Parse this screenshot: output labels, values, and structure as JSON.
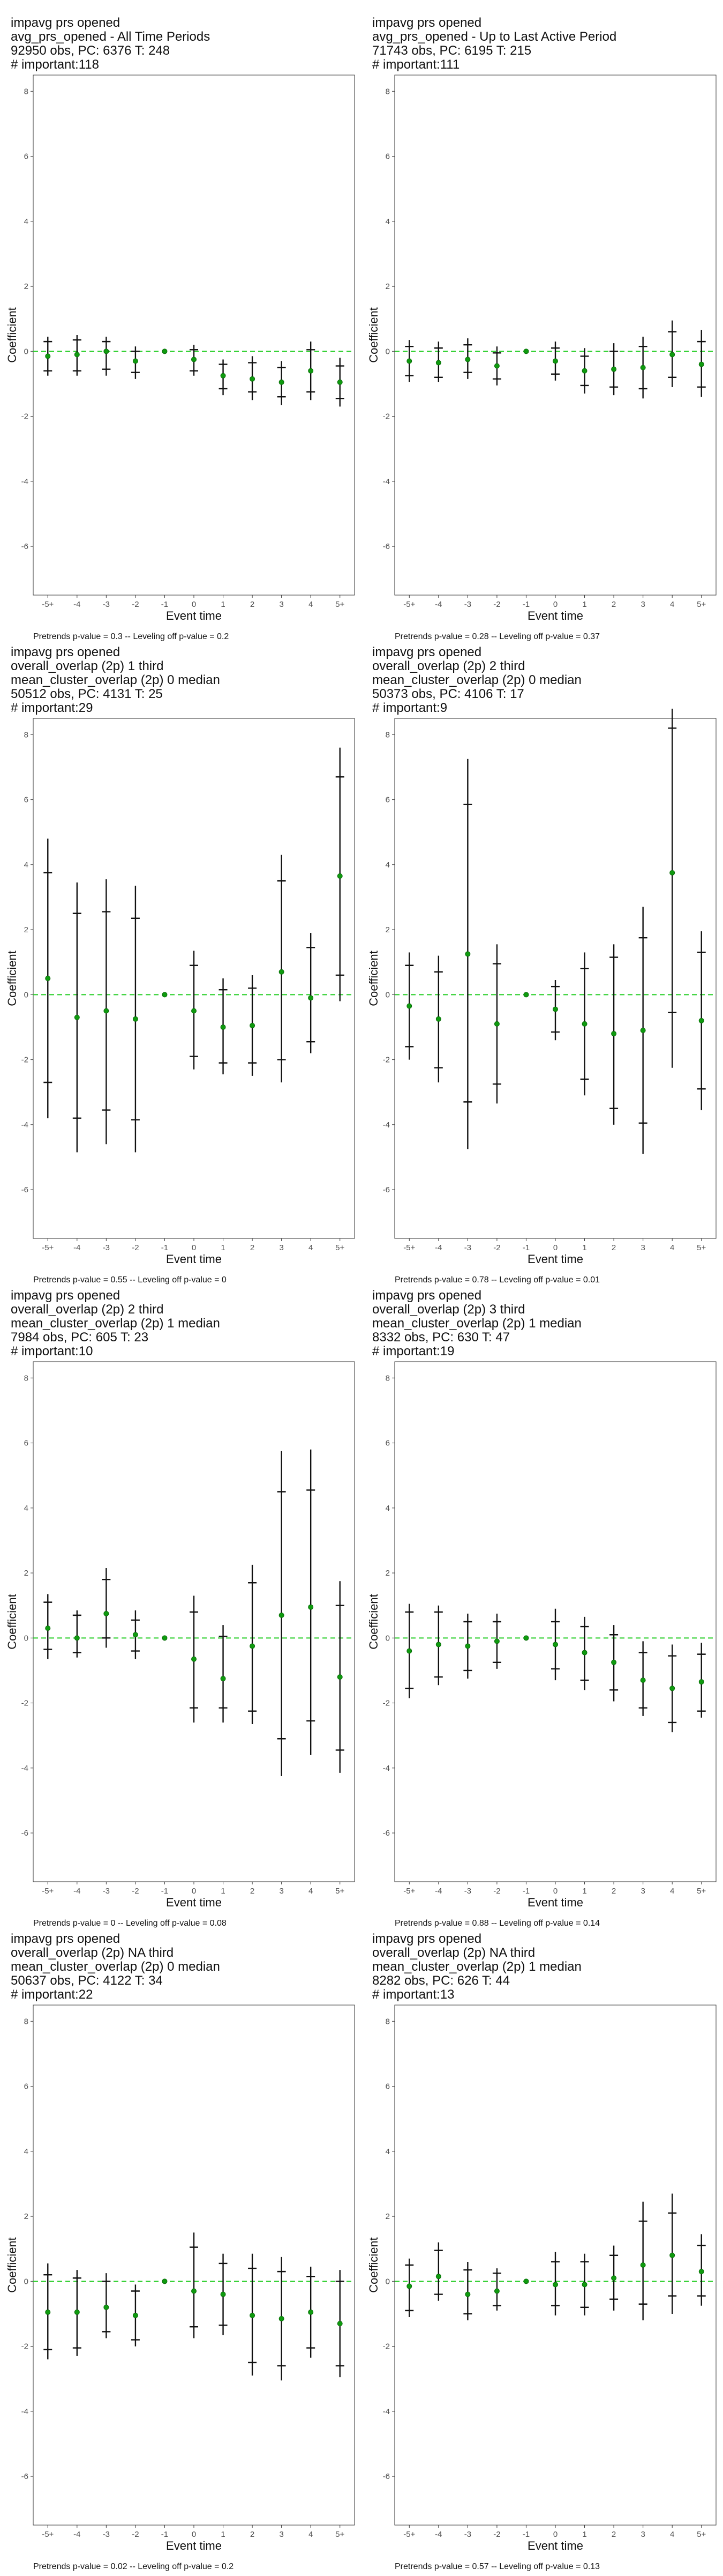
{
  "chart_data": [
    {
      "type": "scatter",
      "title_lines": [
        "impavg prs opened",
        "avg_prs_opened - All Time Periods",
        "92950 obs, PC: 6376 T: 248",
        "# important:118"
      ],
      "xlabel": "Event time",
      "ylabel": "Coefficient",
      "categories": [
        "-5+",
        "-4",
        "-3",
        "-2",
        "-1",
        "0",
        "1",
        "2",
        "3",
        "4",
        "5+"
      ],
      "ylim": [
        -7.5,
        8.5
      ],
      "yticks": [
        -6,
        -4,
        -2,
        0,
        2,
        4,
        6,
        8
      ],
      "estimate": [
        -0.15,
        -0.1,
        0.0,
        -0.3,
        0.0,
        -0.25,
        -0.75,
        -0.85,
        -0.95,
        -0.6,
        -0.95
      ],
      "ci_outer": [
        [
          -0.75,
          0.45
        ],
        [
          -0.75,
          0.5
        ],
        [
          -0.75,
          0.45
        ],
        [
          -0.85,
          0.15
        ],
        [
          0,
          0
        ],
        [
          -0.75,
          0.2
        ],
        [
          -1.35,
          -0.25
        ],
        [
          -1.5,
          -0.15
        ],
        [
          -1.65,
          -0.3
        ],
        [
          -1.5,
          0.3
        ],
        [
          -1.7,
          -0.2
        ]
      ],
      "ci_inner": [
        [
          -0.6,
          0.3
        ],
        [
          -0.6,
          0.35
        ],
        [
          -0.55,
          0.3
        ],
        [
          -0.65,
          0.0
        ],
        [
          0,
          0
        ],
        [
          -0.6,
          0.05
        ],
        [
          -1.15,
          -0.4
        ],
        [
          -1.25,
          -0.35
        ],
        [
          -1.4,
          -0.5
        ],
        [
          -1.25,
          0.05
        ],
        [
          -1.45,
          -0.45
        ]
      ],
      "footer": "Pretrends p-value = 0.3 -- Leveling off p-value = 0.2"
    },
    {
      "type": "scatter",
      "title_lines": [
        "impavg prs opened",
        "avg_prs_opened - Up to Last Active Period",
        "71743 obs, PC: 6195 T: 215",
        "# important:111"
      ],
      "xlabel": "Event time",
      "ylabel": "Coefficient",
      "categories": [
        "-5+",
        "-4",
        "-3",
        "-2",
        "-1",
        "0",
        "1",
        "2",
        "3",
        "4",
        "5+"
      ],
      "ylim": [
        -7.5,
        8.5
      ],
      "yticks": [
        -6,
        -4,
        -2,
        0,
        2,
        4,
        6,
        8
      ],
      "estimate": [
        -0.3,
        -0.35,
        -0.25,
        -0.45,
        0.0,
        -0.3,
        -0.6,
        -0.55,
        -0.5,
        -0.1,
        -0.4
      ],
      "ci_outer": [
        [
          -0.95,
          0.35
        ],
        [
          -0.95,
          0.3
        ],
        [
          -0.85,
          0.4
        ],
        [
          -1.05,
          0.15
        ],
        [
          0,
          0
        ],
        [
          -0.9,
          0.3
        ],
        [
          -1.3,
          0.1
        ],
        [
          -1.35,
          0.25
        ],
        [
          -1.45,
          0.45
        ],
        [
          -1.1,
          0.95
        ],
        [
          -1.4,
          0.65
        ]
      ],
      "ci_inner": [
        [
          -0.75,
          0.15
        ],
        [
          -0.8,
          0.1
        ],
        [
          -0.65,
          0.2
        ],
        [
          -0.85,
          -0.05
        ],
        [
          0,
          0
        ],
        [
          -0.7,
          0.1
        ],
        [
          -1.05,
          -0.15
        ],
        [
          -1.1,
          0.0
        ],
        [
          -1.15,
          0.15
        ],
        [
          -0.8,
          0.6
        ],
        [
          -1.1,
          0.3
        ]
      ],
      "footer": "Pretrends p-value = 0.28 -- Leveling off p-value = 0.37"
    },
    {
      "type": "scatter",
      "title_lines": [
        "impavg prs opened",
        "overall_overlap (2p) 1 third",
        "mean_cluster_overlap (2p) 0 median",
        "50512 obs, PC: 4131 T: 25",
        "# important:29"
      ],
      "xlabel": "Event time",
      "ylabel": "Coefficient",
      "categories": [
        "-5+",
        "-4",
        "-3",
        "-2",
        "-1",
        "0",
        "1",
        "2",
        "3",
        "4",
        "5+"
      ],
      "ylim": [
        -7.5,
        8.5
      ],
      "yticks": [
        -6,
        -4,
        -2,
        0,
        2,
        4,
        6,
        8
      ],
      "estimate": [
        0.5,
        -0.7,
        -0.5,
        -0.75,
        0.0,
        -0.5,
        -1.0,
        -0.95,
        0.7,
        -0.1,
        3.65
      ],
      "ci_outer": [
        [
          -3.8,
          4.8
        ],
        [
          -4.85,
          3.45
        ],
        [
          -4.6,
          3.55
        ],
        [
          -4.85,
          3.35
        ],
        [
          0,
          0
        ],
        [
          -2.3,
          1.35
        ],
        [
          -2.45,
          0.5
        ],
        [
          -2.5,
          0.6
        ],
        [
          -2.7,
          4.3
        ],
        [
          -1.8,
          1.9
        ],
        [
          -0.2,
          7.6
        ]
      ],
      "ci_inner": [
        [
          -2.7,
          3.75
        ],
        [
          -3.8,
          2.5
        ],
        [
          -3.55,
          2.55
        ],
        [
          -3.85,
          2.35
        ],
        [
          0,
          0
        ],
        [
          -1.9,
          0.9
        ],
        [
          -2.1,
          0.15
        ],
        [
          -2.1,
          0.2
        ],
        [
          -2.0,
          3.5
        ],
        [
          -1.45,
          1.45
        ],
        [
          0.6,
          6.7
        ]
      ],
      "footer": "Pretrends p-value = 0.55 -- Leveling off p-value = 0"
    },
    {
      "type": "scatter",
      "title_lines": [
        "impavg prs opened",
        "overall_overlap (2p) 2 third",
        "mean_cluster_overlap (2p) 0 median",
        "50373 obs, PC: 4106 T: 17",
        "# important:9"
      ],
      "xlabel": "Event time",
      "ylabel": "Coefficient",
      "categories": [
        "-5+",
        "-4",
        "-3",
        "-2",
        "-1",
        "0",
        "1",
        "2",
        "3",
        "4",
        "5+"
      ],
      "ylim": [
        -7.5,
        8.5
      ],
      "yticks": [
        -6,
        -4,
        -2,
        0,
        2,
        4,
        6,
        8
      ],
      "estimate": [
        -0.35,
        -0.75,
        1.25,
        -0.9,
        0.0,
        -0.45,
        -0.9,
        -1.2,
        -1.1,
        3.75,
        -0.8
      ],
      "ci_outer": [
        [
          -2.0,
          1.3
        ],
        [
          -2.7,
          1.2
        ],
        [
          -4.75,
          7.25
        ],
        [
          -3.35,
          1.55
        ],
        [
          0,
          0
        ],
        [
          -1.4,
          0.45
        ],
        [
          -3.1,
          1.3
        ],
        [
          -4.0,
          1.55
        ],
        [
          -4.9,
          2.7
        ],
        [
          -2.25,
          8.8
        ],
        [
          -3.55,
          1.95
        ]
      ],
      "ci_inner": [
        [
          -1.6,
          0.9
        ],
        [
          -2.25,
          0.7
        ],
        [
          -3.3,
          5.85
        ],
        [
          -2.75,
          0.95
        ],
        [
          0,
          0
        ],
        [
          -1.15,
          0.25
        ],
        [
          -2.6,
          0.8
        ],
        [
          -3.5,
          1.15
        ],
        [
          -3.95,
          1.75
        ],
        [
          -0.55,
          8.2
        ],
        [
          -2.9,
          1.3
        ]
      ],
      "footer": "Pretrends p-value = 0.78 -- Leveling off p-value = 0.01"
    },
    {
      "type": "scatter",
      "title_lines": [
        "impavg prs opened",
        "overall_overlap (2p) 2 third",
        "mean_cluster_overlap (2p) 1 median",
        "7984 obs, PC: 605 T: 23",
        "# important:10"
      ],
      "xlabel": "Event time",
      "ylabel": "Coefficient",
      "categories": [
        "-5+",
        "-4",
        "-3",
        "-2",
        "-1",
        "0",
        "1",
        "2",
        "3",
        "4",
        "5+"
      ],
      "ylim": [
        -7.5,
        8.5
      ],
      "yticks": [
        -6,
        -4,
        -2,
        0,
        2,
        4,
        6,
        8
      ],
      "estimate": [
        0.3,
        0.0,
        0.75,
        0.1,
        0.0,
        -0.65,
        -1.25,
        -0.25,
        0.7,
        0.95,
        -1.2
      ],
      "ci_outer": [
        [
          -0.65,
          1.35
        ],
        [
          -0.6,
          0.85
        ],
        [
          -0.3,
          2.15
        ],
        [
          -0.65,
          0.85
        ],
        [
          0,
          0
        ],
        [
          -2.6,
          1.3
        ],
        [
          -2.6,
          0.4
        ],
        [
          -2.65,
          2.25
        ],
        [
          -4.25,
          5.75
        ],
        [
          -3.6,
          5.8
        ],
        [
          -4.15,
          1.75
        ]
      ],
      "ci_inner": [
        [
          -0.35,
          1.1
        ],
        [
          -0.45,
          0.7
        ],
        [
          0.0,
          1.8
        ],
        [
          -0.4,
          0.55
        ],
        [
          0,
          0
        ],
        [
          -2.15,
          0.8
        ],
        [
          -2.15,
          0.05
        ],
        [
          -2.25,
          1.7
        ],
        [
          -3.1,
          4.5
        ],
        [
          -2.55,
          4.55
        ],
        [
          -3.45,
          1.0
        ]
      ],
      "footer": "Pretrends p-value = 0 -- Leveling off p-value = 0.08"
    },
    {
      "type": "scatter",
      "title_lines": [
        "impavg prs opened",
        "overall_overlap (2p) 3 third",
        "mean_cluster_overlap (2p) 1 median",
        "8332 obs, PC: 630 T: 47",
        "# important:19"
      ],
      "xlabel": "Event time",
      "ylabel": "Coefficient",
      "categories": [
        "-5+",
        "-4",
        "-3",
        "-2",
        "-1",
        "0",
        "1",
        "2",
        "3",
        "4",
        "5+"
      ],
      "ylim": [
        -7.5,
        8.5
      ],
      "yticks": [
        -6,
        -4,
        -2,
        0,
        2,
        4,
        6,
        8
      ],
      "estimate": [
        -0.4,
        -0.2,
        -0.25,
        -0.1,
        0.0,
        -0.2,
        -0.45,
        -0.75,
        -1.3,
        -1.55,
        -1.35
      ],
      "ci_outer": [
        [
          -1.85,
          1.05
        ],
        [
          -1.45,
          1.0
        ],
        [
          -1.25,
          0.75
        ],
        [
          -0.95,
          0.75
        ],
        [
          0,
          0
        ],
        [
          -1.3,
          0.9
        ],
        [
          -1.6,
          0.65
        ],
        [
          -1.95,
          0.4
        ],
        [
          -2.4,
          -0.1
        ],
        [
          -2.9,
          -0.2
        ],
        [
          -2.45,
          -0.15
        ]
      ],
      "ci_inner": [
        [
          -1.55,
          0.8
        ],
        [
          -1.2,
          0.8
        ],
        [
          -1.0,
          0.5
        ],
        [
          -0.75,
          0.5
        ],
        [
          0,
          0
        ],
        [
          -0.95,
          0.5
        ],
        [
          -1.3,
          0.35
        ],
        [
          -1.6,
          0.1
        ],
        [
          -2.15,
          -0.45
        ],
        [
          -2.6,
          -0.55
        ],
        [
          -2.25,
          -0.5
        ]
      ],
      "footer": "Pretrends p-value = 0.88 -- Leveling off p-value = 0.14"
    },
    {
      "type": "scatter",
      "title_lines": [
        "impavg prs opened",
        "overall_overlap (2p) NA third",
        "mean_cluster_overlap (2p) 0 median",
        "50637 obs, PC: 4122 T: 34",
        "# important:22"
      ],
      "xlabel": "Event time",
      "ylabel": "Coefficient",
      "categories": [
        "-5+",
        "-4",
        "-3",
        "-2",
        "-1",
        "0",
        "1",
        "2",
        "3",
        "4",
        "5+"
      ],
      "ylim": [
        -7.5,
        8.5
      ],
      "yticks": [
        -6,
        -4,
        -2,
        0,
        2,
        4,
        6,
        8
      ],
      "estimate": [
        -0.95,
        -0.95,
        -0.8,
        -1.05,
        0.0,
        -0.3,
        -0.4,
        -1.05,
        -1.15,
        -0.95,
        -1.3
      ],
      "ci_outer": [
        [
          -2.4,
          0.55
        ],
        [
          -2.3,
          0.35
        ],
        [
          -1.75,
          0.25
        ],
        [
          -2.0,
          -0.1
        ],
        [
          0,
          0
        ],
        [
          -1.75,
          1.5
        ],
        [
          -1.65,
          0.85
        ],
        [
          -2.9,
          0.85
        ],
        [
          -3.05,
          0.75
        ],
        [
          -2.35,
          0.45
        ],
        [
          -2.95,
          0.35
        ]
      ],
      "ci_inner": [
        [
          -2.1,
          0.2
        ],
        [
          -2.05,
          0.1
        ],
        [
          -1.55,
          0.0
        ],
        [
          -1.8,
          -0.3
        ],
        [
          0,
          0
        ],
        [
          -1.4,
          1.05
        ],
        [
          -1.35,
          0.55
        ],
        [
          -2.5,
          0.4
        ],
        [
          -2.6,
          0.3
        ],
        [
          -2.05,
          0.15
        ],
        [
          -2.6,
          0.0
        ]
      ],
      "footer": "Pretrends p-value = 0.02 -- Leveling off p-value = 0.2"
    },
    {
      "type": "scatter",
      "title_lines": [
        "impavg prs opened",
        "overall_overlap (2p) NA third",
        "mean_cluster_overlap (2p) 1 median",
        "8282 obs, PC: 626 T: 44",
        "# important:13"
      ],
      "xlabel": "Event time",
      "ylabel": "Coefficient",
      "categories": [
        "-5+",
        "-4",
        "-3",
        "-2",
        "-1",
        "0",
        "1",
        "2",
        "3",
        "4",
        "5+"
      ],
      "ylim": [
        -7.5,
        8.5
      ],
      "yticks": [
        -6,
        -4,
        -2,
        0,
        2,
        4,
        6,
        8
      ],
      "estimate": [
        -0.15,
        0.15,
        -0.4,
        -0.3,
        0.0,
        -0.1,
        -0.1,
        0.1,
        0.5,
        0.8,
        0.3
      ],
      "ci_outer": [
        [
          -1.1,
          0.7
        ],
        [
          -0.6,
          1.2
        ],
        [
          -1.2,
          0.6
        ],
        [
          -0.9,
          0.4
        ],
        [
          0,
          0
        ],
        [
          -1.05,
          0.9
        ],
        [
          -1.05,
          0.85
        ],
        [
          -0.9,
          1.1
        ],
        [
          -1.2,
          2.45
        ],
        [
          -1.0,
          2.7
        ],
        [
          -0.75,
          1.45
        ]
      ],
      "ci_inner": [
        [
          -0.9,
          0.5
        ],
        [
          -0.4,
          0.95
        ],
        [
          -1.0,
          0.35
        ],
        [
          -0.75,
          0.25
        ],
        [
          0,
          0
        ],
        [
          -0.75,
          0.6
        ],
        [
          -0.8,
          0.6
        ],
        [
          -0.55,
          0.8
        ],
        [
          -0.7,
          1.85
        ],
        [
          -0.45,
          2.1
        ],
        [
          -0.45,
          1.1
        ]
      ],
      "footer": "Pretrends p-value = 0.57 -- Leveling off p-value = 0.13"
    }
  ]
}
